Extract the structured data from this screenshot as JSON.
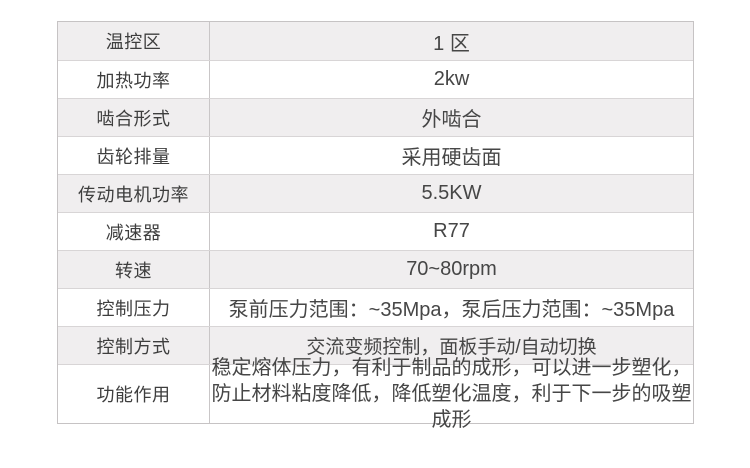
{
  "table": {
    "rows": [
      {
        "label": "温控区",
        "value": "1 区"
      },
      {
        "label": "加热功率",
        "value": "2kw"
      },
      {
        "label": "啮合形式",
        "value": "外啮合"
      },
      {
        "label": "齿轮排量",
        "value": "采用硬齿面"
      },
      {
        "label": "传动电机功率",
        "value": "5.5KW"
      },
      {
        "label": "减速器",
        "value": "R77"
      },
      {
        "label": "转速",
        "value": "70~80rpm"
      },
      {
        "label": "控制压力",
        "value": "泵前压力范围：~35Mpa，泵后压力范围：~35Mpa"
      },
      {
        "label": "控制方式",
        "value": "交流变频控制，面板手动/自动切换"
      },
      {
        "label": "功能作用",
        "value_lines": [
          "稳定熔体压力，有利于制品的成形，可以进一步塑化，",
          "防止材料粘度降低，降低塑化温度，利于下一步的吸塑成形"
        ]
      }
    ],
    "colors": {
      "shaded_row_background": "#f0eeef",
      "outer_border": "#c6c3c4",
      "row_divider": "#d8d5d6",
      "text": "#3e3e3e"
    }
  }
}
